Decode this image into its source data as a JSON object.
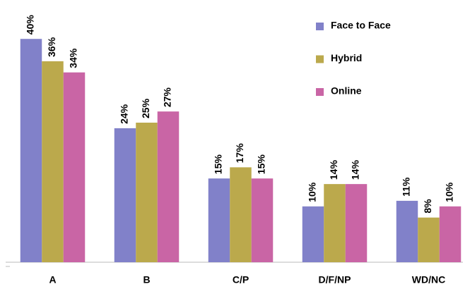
{
  "chart_data": {
    "type": "bar",
    "categories": [
      "A",
      "B",
      "C/P",
      "D/F/NP",
      "WD/NC"
    ],
    "series": [
      {
        "name": "Face to Face",
        "color": "#8181c9",
        "values": [
          40,
          24,
          15,
          10,
          11
        ],
        "value_labels": [
          "40%",
          "24%",
          "15%",
          "10%",
          "11%"
        ]
      },
      {
        "name": "Hybrid",
        "color": "#bba94c",
        "values": [
          36,
          25,
          17,
          14,
          8
        ],
        "value_labels": [
          "36%",
          "25%",
          "17%",
          "14%",
          "8%"
        ]
      },
      {
        "name": "Online",
        "color": "#c965a5",
        "values": [
          34,
          27,
          15,
          14,
          10
        ],
        "value_labels": [
          "34%",
          "27%",
          "15%",
          "14%",
          "10%"
        ]
      }
    ],
    "legend": "top-right"
  }
}
